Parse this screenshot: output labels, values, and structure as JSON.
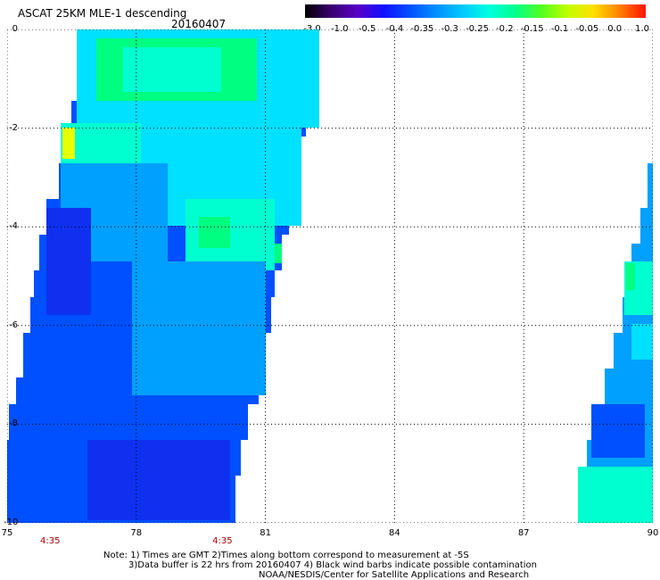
{
  "title": "ASCAT 25KM MLE-1 descending",
  "date": "20160407",
  "colorbar": {
    "labels": [
      "-3.0",
      "-1.0",
      "-0.5",
      "-0.4",
      "-0.35",
      "-0.3",
      "-0.25",
      "-0.2",
      "-0.15",
      "-0.1",
      "-0.05",
      "0.0",
      "1.0"
    ],
    "colors": [
      "#000000",
      "#3a0070",
      "#5a00c8",
      "#1010ff",
      "#0050ff",
      "#0090ff",
      "#00c8ff",
      "#00ffe0",
      "#00ff90",
      "#50ff20",
      "#c0ff00",
      "#ffe000",
      "#ff8000",
      "#ff1000"
    ]
  },
  "map": {
    "lon_min": 75,
    "lon_max": 90,
    "lat_min": -10,
    "lat_max": 0,
    "x_ticks": [
      "75",
      "78",
      "81",
      "84",
      "87",
      "90"
    ],
    "y_ticks": [
      "0",
      "-2",
      "-4",
      "-6",
      "-8",
      "-10"
    ],
    "time_labels": [
      {
        "lon": 76,
        "text": "4:35"
      },
      {
        "lon": 80,
        "text": "4:35"
      }
    ],
    "legend_colors": {
      "deep_blue": "#1030f0",
      "blue": "#0050ff",
      "light_blue": "#00a0ff",
      "cyan": "#00e0ff",
      "aqua": "#00ffd0",
      "green": "#00ff80",
      "yellow": "#e8ff00"
    }
  },
  "notes": {
    "line1": "Note: 1) Times are GMT 2)Times along bottom correspond to measurement at -5S",
    "line2": "3)Data buffer is 22 hrs from 20160407 4) Black wind barbs indicate possible contamination",
    "line3": "NOAA/NESDIS/Center for Satellite Applications and Research"
  }
}
